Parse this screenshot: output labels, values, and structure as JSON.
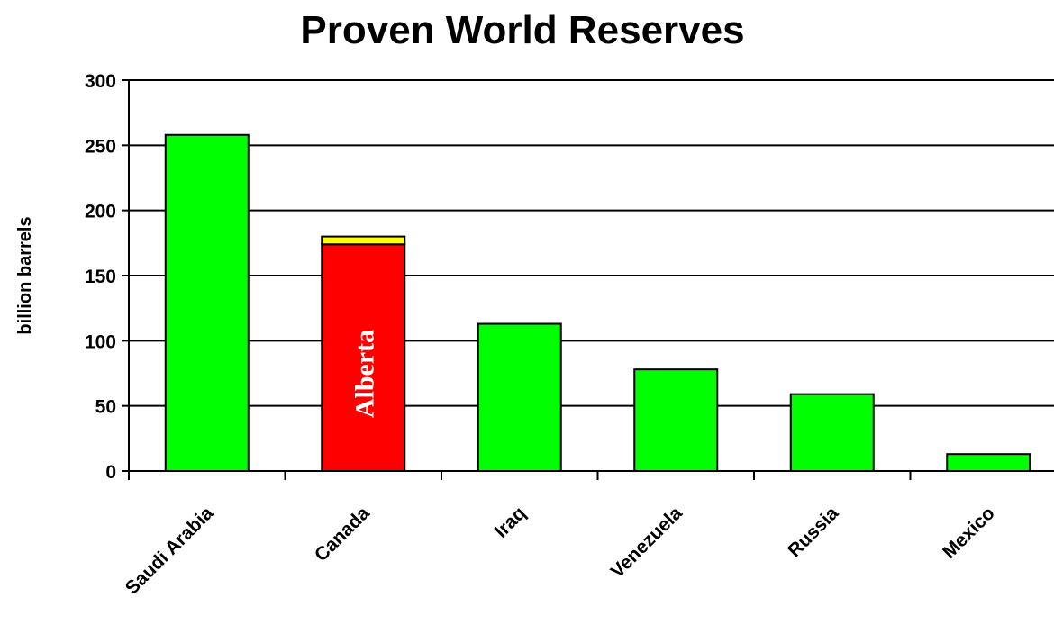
{
  "chart_data": {
    "type": "bar",
    "title": "Proven World Reserves",
    "xlabel": "",
    "ylabel": "billion barrels",
    "ylim": [
      0,
      300
    ],
    "yticks": [
      0,
      50,
      100,
      150,
      200,
      250,
      300
    ],
    "grid": true,
    "categories": [
      "Saudi Arabia",
      "Canada",
      "Iraq",
      "Venezuela",
      "Russia",
      "Mexico"
    ],
    "bars": [
      {
        "category": "Saudi Arabia",
        "segments": [
          {
            "value": 258,
            "color": "#00ff00"
          }
        ]
      },
      {
        "category": "Canada",
        "segments": [
          {
            "value": 174,
            "color": "#ff0000",
            "label": "Alberta"
          },
          {
            "value": 6,
            "color": "#ffff00"
          }
        ]
      },
      {
        "category": "Iraq",
        "segments": [
          {
            "value": 113,
            "color": "#00ff00"
          }
        ]
      },
      {
        "category": "Venezuela",
        "segments": [
          {
            "value": 78,
            "color": "#00ff00"
          }
        ]
      },
      {
        "category": "Russia",
        "segments": [
          {
            "value": 59,
            "color": "#00ff00"
          }
        ]
      },
      {
        "category": "Mexico",
        "segments": [
          {
            "value": 13,
            "color": "#00ff00"
          }
        ]
      }
    ]
  }
}
